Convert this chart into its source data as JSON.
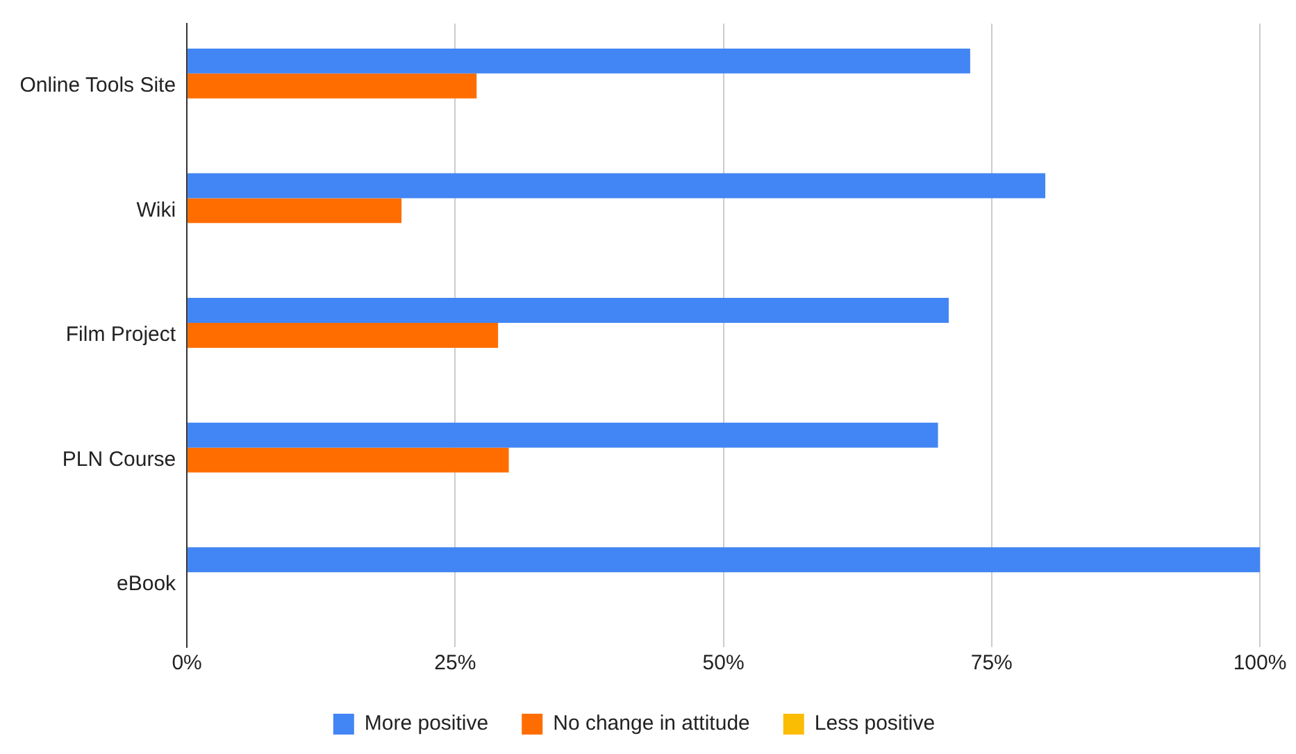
{
  "chart_data": {
    "type": "bar",
    "orientation": "horizontal",
    "categories": [
      "Online Tools Site",
      "Wiki",
      "Film Project",
      "PLN Course",
      "eBook"
    ],
    "series": [
      {
        "name": "More positive",
        "color": "#4285f4",
        "values": [
          73,
          80,
          71,
          70,
          100
        ]
      },
      {
        "name": "No change in attitude",
        "color": "#ff6d01",
        "values": [
          27,
          20,
          29,
          30,
          0
        ]
      },
      {
        "name": "Less positive",
        "color": "#fbbc04",
        "values": [
          0,
          0,
          0,
          0,
          0
        ]
      }
    ],
    "xlim": [
      0,
      100
    ],
    "xticks": [
      {
        "value": 0,
        "label": "0%"
      },
      {
        "value": 25,
        "label": "25%"
      },
      {
        "value": 50,
        "label": "50%"
      },
      {
        "value": 75,
        "label": "75%"
      },
      {
        "value": 100,
        "label": "100%"
      }
    ],
    "grid": "x",
    "legend": "bottom"
  }
}
